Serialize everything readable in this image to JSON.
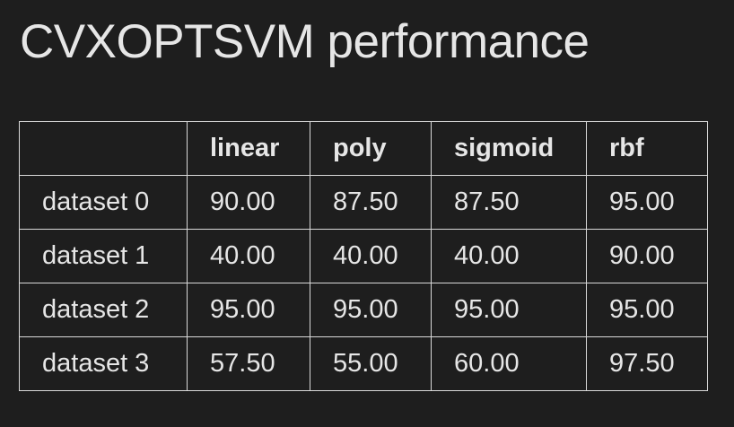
{
  "title": "CVXOPTSVM performance",
  "table": {
    "columns": [
      "",
      "linear",
      "poly",
      "sigmoid",
      "rbf"
    ],
    "rows": [
      {
        "label": "dataset 0",
        "values": [
          "90.00",
          "87.50",
          "87.50",
          "95.00"
        ]
      },
      {
        "label": "dataset 1",
        "values": [
          "40.00",
          "40.00",
          "40.00",
          "90.00"
        ]
      },
      {
        "label": "dataset 2",
        "values": [
          "95.00",
          "95.00",
          "95.00",
          "95.00"
        ]
      },
      {
        "label": "dataset 3",
        "values": [
          "57.50",
          "55.00",
          "60.00",
          "97.50"
        ]
      }
    ]
  },
  "colors": {
    "background": "#1e1e1e",
    "text": "#e6e6e6",
    "border": "#d9d9d9"
  }
}
